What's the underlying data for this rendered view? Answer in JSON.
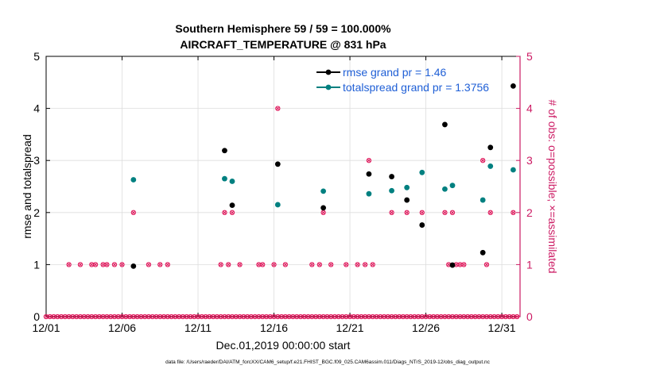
{
  "chart_data": {
    "type": "scatter",
    "title_line1": "Southern Hemisphere 59 / 59 = 100.000%",
    "title_line2": "AIRCRAFT_TEMPERATURE @ 831 hPa",
    "xlabel": "Dec.01,2019 00:00:00 start",
    "ylabel_left": "rmse and totalspread",
    "ylabel_right": "# of obs: o=possible; ×=assimilated",
    "xlim": [
      1,
      32.2
    ],
    "ylim_left": [
      0,
      5
    ],
    "ylim_right": [
      0,
      5
    ],
    "x_ticks": [
      {
        "x": 1,
        "label": "12/01"
      },
      {
        "x": 6,
        "label": "12/06"
      },
      {
        "x": 11,
        "label": "12/11"
      },
      {
        "x": 16,
        "label": "12/16"
      },
      {
        "x": 21,
        "label": "12/21"
      },
      {
        "x": 26,
        "label": "12/26"
      },
      {
        "x": 31,
        "label": "12/31"
      }
    ],
    "y_ticks_left": [
      "0",
      "1",
      "2",
      "3",
      "4",
      "5"
    ],
    "y_ticks_right": [
      "0",
      "1",
      "2",
      "3",
      "4",
      "5"
    ],
    "colors": {
      "rmse": "#000000",
      "spread": "#008080",
      "obs": "#e0185c",
      "right_axis": "#cc1a63",
      "grid": "#dddddd"
    },
    "legend": [
      {
        "name": "rmse grand pr = 1.46",
        "series": "rmse"
      },
      {
        "name": "totalspread grand pr = 1.3756",
        "series": "spread"
      }
    ],
    "series": [
      {
        "name": "rmse",
        "points": [
          [
            6.75,
            0.97
          ],
          [
            12.75,
            3.19
          ],
          [
            13.25,
            2.14
          ],
          [
            16.25,
            2.93
          ],
          [
            19.25,
            2.09
          ],
          [
            22.25,
            2.74
          ],
          [
            23.75,
            2.69
          ],
          [
            24.75,
            2.24
          ],
          [
            25.75,
            1.76
          ],
          [
            27.25,
            3.69
          ],
          [
            27.75,
            0.99
          ],
          [
            29.75,
            1.23
          ],
          [
            30.25,
            3.25
          ],
          [
            31.75,
            4.43
          ]
        ]
      },
      {
        "name": "totalspread",
        "points": [
          [
            6.75,
            2.63
          ],
          [
            12.75,
            2.65
          ],
          [
            13.25,
            2.6
          ],
          [
            16.25,
            2.15
          ],
          [
            19.25,
            2.41
          ],
          [
            22.25,
            2.36
          ],
          [
            23.75,
            2.42
          ],
          [
            24.75,
            2.48
          ],
          [
            25.75,
            2.77
          ],
          [
            27.25,
            2.45
          ],
          [
            27.75,
            2.52
          ],
          [
            29.75,
            2.24
          ],
          [
            30.25,
            2.89
          ],
          [
            31.75,
            2.82
          ]
        ]
      },
      {
        "name": "obs_count",
        "points": [
          [
            1.0,
            0
          ],
          [
            1.25,
            0
          ],
          [
            1.5,
            0
          ],
          [
            1.75,
            0
          ],
          [
            2.0,
            0
          ],
          [
            2.25,
            0
          ],
          [
            2.5,
            0
          ],
          [
            2.75,
            0
          ],
          [
            3.0,
            0
          ],
          [
            3.25,
            0
          ],
          [
            3.5,
            0
          ],
          [
            3.75,
            0
          ],
          [
            4.0,
            0
          ],
          [
            4.25,
            0
          ],
          [
            4.5,
            0
          ],
          [
            4.75,
            0
          ],
          [
            5.0,
            0
          ],
          [
            5.25,
            0
          ],
          [
            5.5,
            0
          ],
          [
            5.75,
            0
          ],
          [
            6.0,
            0
          ],
          [
            6.25,
            0
          ],
          [
            6.5,
            0
          ],
          [
            6.75,
            0
          ],
          [
            7.0,
            0
          ],
          [
            7.25,
            0
          ],
          [
            7.5,
            0
          ],
          [
            7.75,
            0
          ],
          [
            8.0,
            0
          ],
          [
            8.25,
            0
          ],
          [
            8.5,
            0
          ],
          [
            8.75,
            0
          ],
          [
            9.0,
            0
          ],
          [
            9.25,
            0
          ],
          [
            9.5,
            0
          ],
          [
            9.75,
            0
          ],
          [
            10.0,
            0
          ],
          [
            10.25,
            0
          ],
          [
            10.5,
            0
          ],
          [
            10.75,
            0
          ],
          [
            11.0,
            0
          ],
          [
            11.25,
            0
          ],
          [
            11.5,
            0
          ],
          [
            11.75,
            0
          ],
          [
            12.0,
            0
          ],
          [
            12.25,
            0
          ],
          [
            12.5,
            0
          ],
          [
            12.75,
            0
          ],
          [
            13.0,
            0
          ],
          [
            13.25,
            0
          ],
          [
            13.5,
            0
          ],
          [
            13.75,
            0
          ],
          [
            14.0,
            0
          ],
          [
            14.25,
            0
          ],
          [
            14.5,
            0
          ],
          [
            14.75,
            0
          ],
          [
            15.0,
            0
          ],
          [
            15.25,
            0
          ],
          [
            15.5,
            0
          ],
          [
            15.75,
            0
          ],
          [
            16.0,
            0
          ],
          [
            16.25,
            0
          ],
          [
            16.5,
            0
          ],
          [
            16.75,
            0
          ],
          [
            17.0,
            0
          ],
          [
            17.25,
            0
          ],
          [
            17.5,
            0
          ],
          [
            17.75,
            0
          ],
          [
            18.0,
            0
          ],
          [
            18.25,
            0
          ],
          [
            18.5,
            0
          ],
          [
            18.75,
            0
          ],
          [
            19.0,
            0
          ],
          [
            19.25,
            0
          ],
          [
            19.5,
            0
          ],
          [
            19.75,
            0
          ],
          [
            20.0,
            0
          ],
          [
            20.25,
            0
          ],
          [
            20.5,
            0
          ],
          [
            20.75,
            0
          ],
          [
            21.0,
            0
          ],
          [
            21.25,
            0
          ],
          [
            21.5,
            0
          ],
          [
            21.75,
            0
          ],
          [
            22.0,
            0
          ],
          [
            22.25,
            0
          ],
          [
            22.5,
            0
          ],
          [
            22.75,
            0
          ],
          [
            23.0,
            0
          ],
          [
            23.25,
            0
          ],
          [
            23.5,
            0
          ],
          [
            23.75,
            0
          ],
          [
            24.0,
            0
          ],
          [
            24.25,
            0
          ],
          [
            24.5,
            0
          ],
          [
            24.75,
            0
          ],
          [
            25.0,
            0
          ],
          [
            25.25,
            0
          ],
          [
            25.5,
            0
          ],
          [
            25.75,
            0
          ],
          [
            26.0,
            0
          ],
          [
            26.25,
            0
          ],
          [
            26.5,
            0
          ],
          [
            26.75,
            0
          ],
          [
            27.0,
            0
          ],
          [
            27.25,
            0
          ],
          [
            27.5,
            0
          ],
          [
            27.75,
            0
          ],
          [
            28.0,
            0
          ],
          [
            28.25,
            0
          ],
          [
            28.5,
            0
          ],
          [
            28.75,
            0
          ],
          [
            29.0,
            0
          ],
          [
            29.25,
            0
          ],
          [
            29.5,
            0
          ],
          [
            29.75,
            0
          ],
          [
            30.0,
            0
          ],
          [
            30.25,
            0
          ],
          [
            30.5,
            0
          ],
          [
            30.75,
            0
          ],
          [
            31.0,
            0
          ],
          [
            31.25,
            0
          ],
          [
            31.5,
            0
          ],
          [
            31.75,
            0
          ],
          [
            32.0,
            0
          ],
          [
            2.5,
            1
          ],
          [
            3.25,
            1
          ],
          [
            4.0,
            1
          ],
          [
            4.25,
            1
          ],
          [
            4.75,
            1
          ],
          [
            5.0,
            1
          ],
          [
            5.5,
            1
          ],
          [
            6.0,
            1
          ],
          [
            6.75,
            2
          ],
          [
            7.75,
            1
          ],
          [
            8.5,
            1
          ],
          [
            9.0,
            1
          ],
          [
            12.5,
            1
          ],
          [
            12.75,
            2
          ],
          [
            13.0,
            1
          ],
          [
            13.25,
            2
          ],
          [
            13.75,
            1
          ],
          [
            15.0,
            1
          ],
          [
            15.25,
            1
          ],
          [
            16.0,
            1
          ],
          [
            16.25,
            4
          ],
          [
            16.75,
            1
          ],
          [
            18.5,
            1
          ],
          [
            19.0,
            1
          ],
          [
            19.25,
            2
          ],
          [
            19.75,
            1
          ],
          [
            20.75,
            1
          ],
          [
            21.5,
            1
          ],
          [
            22.0,
            1
          ],
          [
            22.25,
            3
          ],
          [
            22.5,
            1
          ],
          [
            23.75,
            2
          ],
          [
            24.75,
            2
          ],
          [
            25.75,
            2
          ],
          [
            27.25,
            2
          ],
          [
            27.5,
            1
          ],
          [
            27.75,
            2
          ],
          [
            28.0,
            1
          ],
          [
            28.25,
            1
          ],
          [
            28.5,
            1
          ],
          [
            29.75,
            3
          ],
          [
            30.0,
            1
          ],
          [
            30.25,
            2
          ],
          [
            31.75,
            2
          ]
        ]
      }
    ]
  },
  "footer_note": "data file: /Users/raeder/DAI/ATM_forcXX/CAM6_setup/f.e21.FHIST_BGC.f09_025.CAM6assim.011/Diags_NTrS_2019-12/obs_diag_output.nc"
}
